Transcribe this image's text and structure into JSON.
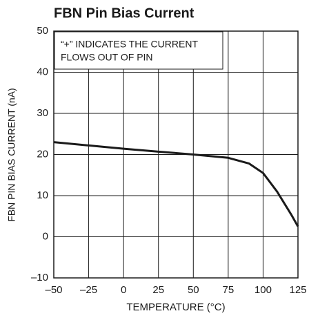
{
  "chart_data": {
    "type": "line",
    "title": "FBN Pin Bias Current",
    "xlabel": "TEMPERATURE (°C)",
    "ylabel": "FBN PIN BIAS CURRENT (nA)",
    "annotation": [
      "“+” INDICATES THE CURRENT",
      "FLOWS OUT OF PIN"
    ],
    "x": [
      -50,
      -25,
      0,
      25,
      50,
      75,
      90,
      100,
      110,
      120,
      125
    ],
    "values": [
      23,
      22.2,
      21.4,
      20.7,
      20,
      19.2,
      17.8,
      15.5,
      11,
      5.5,
      2.5
    ],
    "color": "#1a1a1a",
    "xlim": [
      -50,
      125
    ],
    "xticks": [
      {
        "value": -50,
        "label": "–50"
      },
      {
        "value": -25,
        "label": "–25"
      },
      0,
      25,
      50,
      75,
      100,
      125
    ],
    "ylim": [
      -10,
      50
    ],
    "yticks": [
      {
        "value": -10,
        "label": "–10"
      },
      0,
      10,
      20,
      30,
      40,
      50
    ],
    "grid": true
  }
}
